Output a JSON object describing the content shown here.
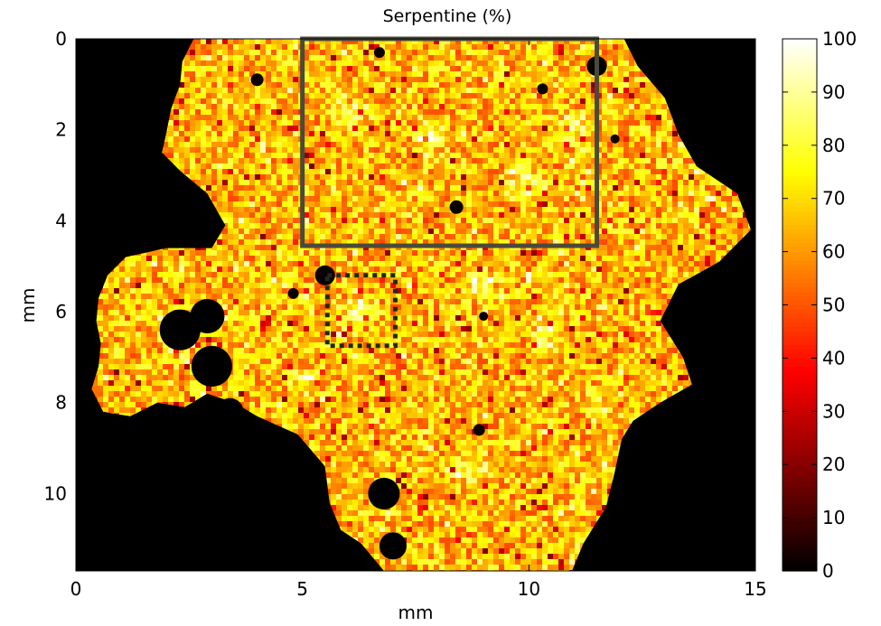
{
  "chart_data": {
    "type": "heatmap",
    "title": "Serpentine (%)",
    "xlabel": "mm",
    "ylabel": "mm",
    "xlim": [
      0,
      15
    ],
    "ylim": [
      0,
      11.7
    ],
    "y_axis_direction": "top-to-bottom",
    "x_ticks": [
      {
        "value": 0,
        "label": "0"
      },
      {
        "value": 5,
        "label": "5"
      },
      {
        "value": 10,
        "label": "10"
      },
      {
        "value": 15,
        "label": "15"
      }
    ],
    "y_ticks": [
      {
        "value": 0,
        "label": "0"
      },
      {
        "value": 2,
        "label": "2"
      },
      {
        "value": 4,
        "label": "4"
      },
      {
        "value": 6,
        "label": "6"
      },
      {
        "value": 8,
        "label": "8"
      },
      {
        "value": 10,
        "label": "10"
      }
    ],
    "colorbar": {
      "colormap": "hot",
      "min": 0,
      "max": 100,
      "placement": "right",
      "ticks": [
        {
          "value": 0,
          "label": "0"
        },
        {
          "value": 10,
          "label": "10"
        },
        {
          "value": 20,
          "label": "20"
        },
        {
          "value": 30,
          "label": "30"
        },
        {
          "value": 40,
          "label": "40"
        },
        {
          "value": 50,
          "label": "50"
        },
        {
          "value": 60,
          "label": "60"
        },
        {
          "value": 70,
          "label": "70"
        },
        {
          "value": 80,
          "label": "80"
        },
        {
          "value": 90,
          "label": "90"
        },
        {
          "value": 100,
          "label": "100"
        }
      ]
    },
    "regions": [
      {
        "style": "solid",
        "color": "#4a4a3a",
        "x": [
          5,
          11.5
        ],
        "y": [
          0,
          4.55
        ]
      },
      {
        "style": "dotted",
        "color": "#1e2a1e",
        "x": [
          5.55,
          7.05
        ],
        "y": [
          5.2,
          6.75
        ]
      }
    ],
    "sample_outline_mm": [
      [
        2.6,
        0
      ],
      [
        2.35,
        0.5
      ],
      [
        2.3,
        1.0
      ],
      [
        2.1,
        1.55
      ],
      [
        2.0,
        2.05
      ],
      [
        1.9,
        2.5
      ],
      [
        2.3,
        2.9
      ],
      [
        2.9,
        3.4
      ],
      [
        3.3,
        4.1
      ],
      [
        3.0,
        4.6
      ],
      [
        2.0,
        4.6
      ],
      [
        1.1,
        4.8
      ],
      [
        0.7,
        5.2
      ],
      [
        0.5,
        5.7
      ],
      [
        0.45,
        6.2
      ],
      [
        0.55,
        6.7
      ],
      [
        0.5,
        7.2
      ],
      [
        0.35,
        7.7
      ],
      [
        0.6,
        8.2
      ],
      [
        1.2,
        8.3
      ],
      [
        1.8,
        8.0
      ],
      [
        2.4,
        8.1
      ],
      [
        2.9,
        7.8
      ],
      [
        3.5,
        8.0
      ],
      [
        4.0,
        8.3
      ],
      [
        4.9,
        8.7
      ],
      [
        5.5,
        9.4
      ],
      [
        5.6,
        10.2
      ],
      [
        5.85,
        10.8
      ],
      [
        6.3,
        11.1
      ],
      [
        6.8,
        11.7
      ],
      [
        10.95,
        11.7
      ],
      [
        11.2,
        11.1
      ],
      [
        11.7,
        10.3
      ],
      [
        11.9,
        9.5
      ],
      [
        12.05,
        8.8
      ],
      [
        12.3,
        8.4
      ],
      [
        12.9,
        8.0
      ],
      [
        13.6,
        7.6
      ],
      [
        13.4,
        7.0
      ],
      [
        12.9,
        6.2
      ],
      [
        13.3,
        5.4
      ],
      [
        14.2,
        4.9
      ],
      [
        14.9,
        4.2
      ],
      [
        14.6,
        3.4
      ],
      [
        13.7,
        2.8
      ],
      [
        13.3,
        2.1
      ],
      [
        13.0,
        1.3
      ],
      [
        12.4,
        0.6
      ],
      [
        12.1,
        0
      ]
    ],
    "holes_mm": [
      {
        "cx": 5.5,
        "cy": 5.2,
        "r": 0.22
      },
      {
        "cx": 8.4,
        "cy": 3.7,
        "r": 0.15
      },
      {
        "cx": 10.3,
        "cy": 1.1,
        "r": 0.12
      },
      {
        "cx": 4.0,
        "cy": 0.9,
        "r": 0.14
      },
      {
        "cx": 8.9,
        "cy": 8.6,
        "r": 0.13
      },
      {
        "cx": 4.8,
        "cy": 5.6,
        "r": 0.12
      },
      {
        "cx": 9.0,
        "cy": 6.1,
        "r": 0.1
      },
      {
        "cx": 6.7,
        "cy": 0.3,
        "r": 0.12
      },
      {
        "cx": 11.9,
        "cy": 2.2,
        "r": 0.1
      }
    ],
    "pores_mm": [
      {
        "cx": 2.3,
        "cy": 6.4,
        "r": 0.45
      },
      {
        "cx": 2.9,
        "cy": 6.1,
        "r": 0.38
      },
      {
        "cx": 3.0,
        "cy": 7.2,
        "r": 0.45
      },
      {
        "cx": 3.4,
        "cy": 8.2,
        "r": 0.3
      },
      {
        "cx": 6.8,
        "cy": 10.0,
        "r": 0.35
      },
      {
        "cx": 7.0,
        "cy": 11.15,
        "r": 0.3
      },
      {
        "cx": 11.5,
        "cy": 0.6,
        "r": 0.22
      },
      {
        "cx": 12.7,
        "cy": 0.45,
        "r": 0.2
      }
    ],
    "bright_patches_mm": [
      {
        "cx": 6.0,
        "cy": 1.5,
        "r": 0.6
      },
      {
        "cx": 7.8,
        "cy": 2.1,
        "r": 0.5
      },
      {
        "cx": 9.9,
        "cy": 3.2,
        "r": 0.6
      },
      {
        "cx": 6.2,
        "cy": 6.0,
        "r": 0.55
      },
      {
        "cx": 8.8,
        "cy": 5.3,
        "r": 0.45
      },
      {
        "cx": 10.3,
        "cy": 6.5,
        "r": 0.5
      },
      {
        "cx": 8.7,
        "cy": 9.4,
        "r": 0.55
      },
      {
        "cx": 11.4,
        "cy": 8.1,
        "r": 0.4
      },
      {
        "cx": 5.0,
        "cy": 7.5,
        "r": 0.4
      },
      {
        "cx": 10.9,
        "cy": 1.9,
        "r": 0.45
      }
    ]
  }
}
